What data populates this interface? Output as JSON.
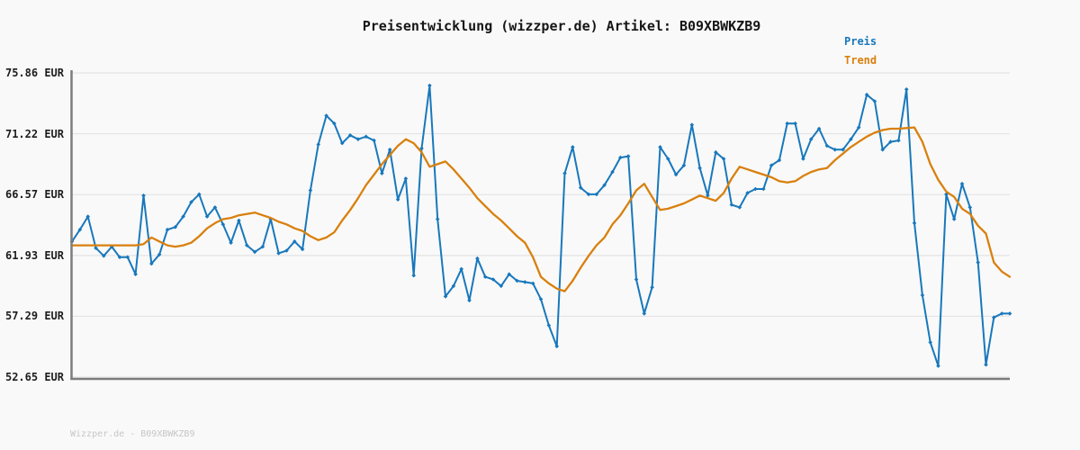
{
  "title": "Preisentwicklung (wizzper.de) Artikel: B09XBWKZB9",
  "legend": {
    "preis": "Preis",
    "trend": "Trend"
  },
  "footer": "Wizzper.de - B09XBWKZB9",
  "colors": {
    "price": "#1878bc",
    "trend": "#d9800e",
    "grid": "#e4e4e4",
    "spine": "#7d7d7d",
    "background": "#f9f9f9",
    "text": "#161616",
    "watermark": "#c6c6c6"
  },
  "chart_data": {
    "type": "line",
    "title": "Preisentwicklung (wizzper.de) Artikel: B09XBWKZB9",
    "xlabel": "",
    "ylabel": "",
    "unit": "EUR",
    "ylim": [
      52.65,
      75.86
    ],
    "yticks": [
      "75.86 EUR",
      "71.22 EUR",
      "66.57 EUR",
      "61.93 EUR",
      "57.29 EUR",
      "52.65 EUR"
    ],
    "ytick_values": [
      75.86,
      71.22,
      66.57,
      61.93,
      57.29,
      52.65
    ],
    "grid": "horizontal",
    "x_axis_labels": "none",
    "legend_position": "top-right",
    "series": [
      {
        "name": "Preis",
        "color": "#1878bc",
        "marker": "diamond",
        "values": [
          63.0,
          63.9,
          64.9,
          62.5,
          61.9,
          62.6,
          61.8,
          61.8,
          60.5,
          66.5,
          61.3,
          62.0,
          63.9,
          64.1,
          64.9,
          66.0,
          66.6,
          64.9,
          65.6,
          64.3,
          62.9,
          64.6,
          62.7,
          62.2,
          62.6,
          64.7,
          62.1,
          62.3,
          63.0,
          62.4,
          66.9,
          70.4,
          72.6,
          72.0,
          70.5,
          71.1,
          70.8,
          71.0,
          70.7,
          68.2,
          70.0,
          66.2,
          67.8,
          60.4,
          70.1,
          74.9,
          64.7,
          58.8,
          59.6,
          60.9,
          58.5,
          61.7,
          60.3,
          60.1,
          59.6,
          60.5,
          60.0,
          59.9,
          59.8,
          58.6,
          56.6,
          55.0,
          68.2,
          70.2,
          67.1,
          66.6,
          66.6,
          67.3,
          68.3,
          69.4,
          69.5,
          60.1,
          57.5,
          59.5,
          70.2,
          69.3,
          68.1,
          68.8,
          71.9,
          68.6,
          66.5,
          69.8,
          69.3,
          65.8,
          65.6,
          66.7,
          67.0,
          67.0,
          68.8,
          69.2,
          72.0,
          72.0,
          69.3,
          70.8,
          71.6,
          70.3,
          70.0,
          70.0,
          70.8,
          71.7,
          74.2,
          73.7,
          70.0,
          70.6,
          70.7,
          74.6,
          64.4,
          58.9,
          55.3,
          53.5,
          66.6,
          64.7,
          67.4,
          65.6,
          61.4,
          53.6,
          57.2,
          57.5,
          57.5
        ]
      },
      {
        "name": "Trend",
        "color": "#d9800e",
        "marker": "none",
        "values": [
          62.7,
          62.7,
          62.7,
          62.7,
          62.7,
          62.7,
          62.7,
          62.7,
          62.7,
          62.8,
          63.3,
          63.0,
          62.7,
          62.6,
          62.7,
          62.9,
          63.4,
          64.0,
          64.4,
          64.7,
          64.8,
          65.0,
          65.1,
          65.2,
          65.0,
          64.8,
          64.5,
          64.3,
          64.0,
          63.8,
          63.4,
          63.1,
          63.3,
          63.7,
          64.6,
          65.4,
          66.3,
          67.3,
          68.1,
          68.9,
          69.6,
          70.3,
          70.8,
          70.5,
          69.8,
          68.7,
          68.9,
          69.1,
          68.5,
          67.8,
          67.1,
          66.3,
          65.7,
          65.1,
          64.6,
          64.0,
          63.4,
          62.9,
          61.8,
          60.3,
          59.8,
          59.4,
          59.2,
          60.0,
          61.0,
          61.9,
          62.7,
          63.3,
          64.3,
          65.0,
          65.9,
          66.9,
          67.4,
          66.4,
          65.4,
          65.5,
          65.7,
          65.9,
          66.2,
          66.5,
          66.3,
          66.1,
          66.7,
          67.8,
          68.7,
          68.5,
          68.3,
          68.1,
          67.9,
          67.6,
          67.5,
          67.6,
          68.0,
          68.3,
          68.5,
          68.6,
          69.2,
          69.7,
          70.2,
          70.6,
          71.0,
          71.3,
          71.5,
          71.6,
          71.6,
          71.65,
          71.7,
          70.6,
          68.9,
          67.7,
          66.8,
          66.4,
          65.5,
          65.1,
          64.2,
          63.6,
          61.4,
          60.7,
          60.3
        ]
      }
    ]
  }
}
